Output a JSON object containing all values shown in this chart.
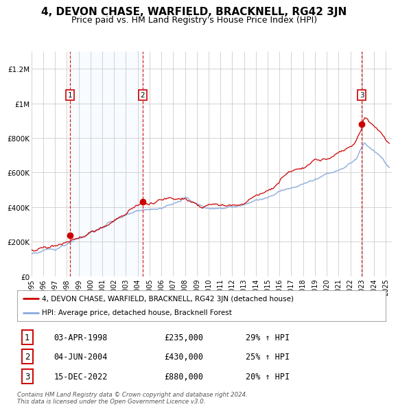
{
  "title": "4, DEVON CHASE, WARFIELD, BRACKNELL, RG42 3JN",
  "subtitle": "Price paid vs. HM Land Registry's House Price Index (HPI)",
  "title_fontsize": 11,
  "subtitle_fontsize": 9,
  "xlim": [
    1995.0,
    2025.5
  ],
  "ylim": [
    0,
    1300000
  ],
  "yticks": [
    0,
    200000,
    400000,
    600000,
    800000,
    1000000,
    1200000
  ],
  "ytick_labels": [
    "£0",
    "£200K",
    "£400K",
    "£600K",
    "£800K",
    "£1M",
    "£1.2M"
  ],
  "sale_dates_year": [
    1998.25,
    2004.42,
    2022.96
  ],
  "sale_prices": [
    235000,
    430000,
    880000
  ],
  "sale_labels": [
    "1",
    "2",
    "3"
  ],
  "legend_red": "4, DEVON CHASE, WARFIELD, BRACKNELL, RG42 3JN (detached house)",
  "legend_blue": "HPI: Average price, detached house, Bracknell Forest",
  "table_rows": [
    [
      "1",
      "03-APR-1998",
      "£235,000",
      "29% ↑ HPI"
    ],
    [
      "2",
      "04-JUN-2004",
      "£430,000",
      "25% ↑ HPI"
    ],
    [
      "3",
      "15-DEC-2022",
      "£880,000",
      "20% ↑ HPI"
    ]
  ],
  "footnote": "Contains HM Land Registry data © Crown copyright and database right 2024.\nThis data is licensed under the Open Government Licence v3.0.",
  "red_line_color": "#cc0000",
  "blue_line_color": "#88aadd",
  "shade_color": "#ddeeff",
  "dot_color": "#cc0000",
  "vline_color": "#cc0000",
  "grid_color": "#cccccc",
  "bg_color": "#ffffff"
}
